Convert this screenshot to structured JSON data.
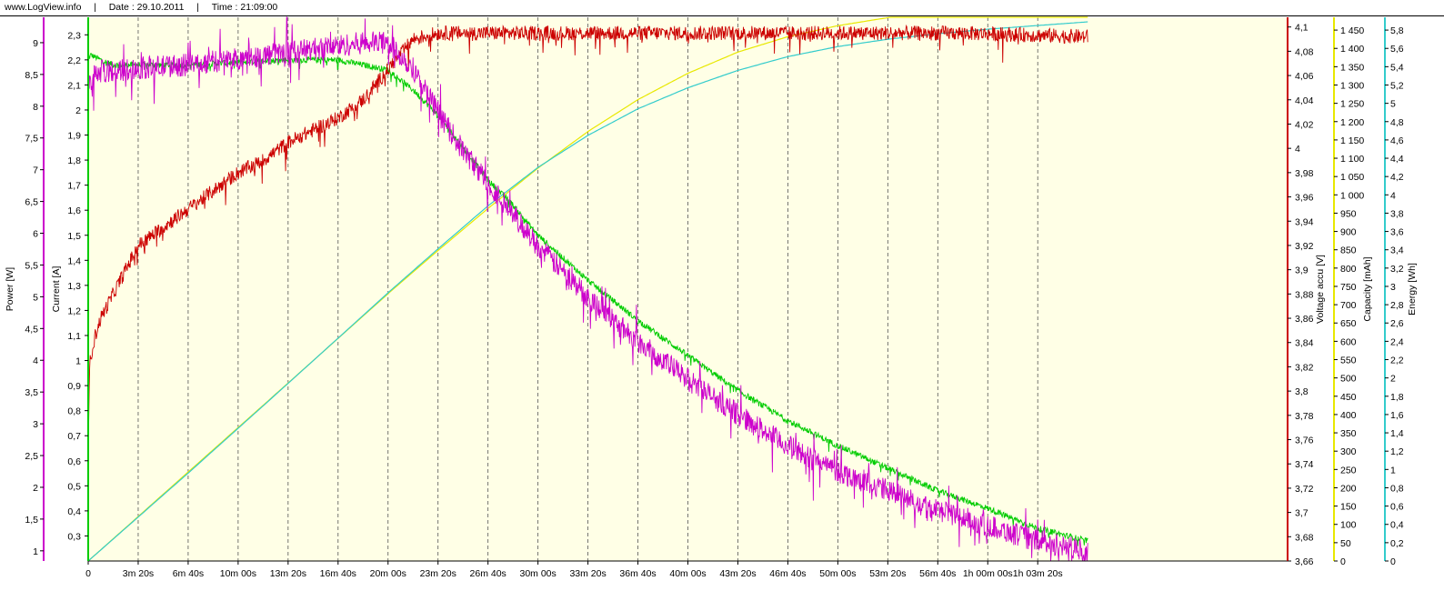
{
  "header": {
    "site": "www.LogView.info",
    "separator": "|",
    "date_label": "Date : 29.10.2011",
    "time_label": "Time : 21:09:00"
  },
  "colors": {
    "background": "#ffffe6",
    "grid": "#555555",
    "power": "#cc00cc",
    "current": "#00cc00",
    "voltage": "#cc0000",
    "capacity": "#e8e800",
    "energy": "#33cccc"
  },
  "chart_data": {
    "type": "line",
    "x_unit": "seconds",
    "xlim": [
      0,
      4800
    ],
    "x_ticks": [
      {
        "value": 0,
        "label": "0"
      },
      {
        "value": 200,
        "label": "3m 20s"
      },
      {
        "value": 400,
        "label": "6m 40s"
      },
      {
        "value": 600,
        "label": "10m 00s"
      },
      {
        "value": 800,
        "label": "13m 20s"
      },
      {
        "value": 1000,
        "label": "16m 40s"
      },
      {
        "value": 1200,
        "label": "20m 00s"
      },
      {
        "value": 1400,
        "label": "23m 20s"
      },
      {
        "value": 1600,
        "label": "26m 40s"
      },
      {
        "value": 1800,
        "label": "30m 00s"
      },
      {
        "value": 2000,
        "label": "33m 20s"
      },
      {
        "value": 2200,
        "label": "36m 40s"
      },
      {
        "value": 2400,
        "label": "40m 00s"
      },
      {
        "value": 2600,
        "label": "43m 20s"
      },
      {
        "value": 2800,
        "label": "46m 40s"
      },
      {
        "value": 3000,
        "label": "50m 00s"
      },
      {
        "value": 3200,
        "label": "53m 20s"
      },
      {
        "value": 3400,
        "label": "56m 40s"
      },
      {
        "value": 3600,
        "label": "1h 00m 00s"
      },
      {
        "value": 3800,
        "label": "1h 03m 20s"
      }
    ],
    "axes": [
      {
        "id": "power",
        "label": "Power [W]",
        "side": "left",
        "min": 0.84,
        "max": 9.4,
        "ticks": [
          1,
          1.5,
          2,
          2.5,
          3,
          3.5,
          4,
          4.5,
          5,
          5.5,
          6,
          6.5,
          7,
          7.5,
          8,
          8.5,
          9
        ],
        "tick_labels": [
          "1",
          "1,5",
          "2",
          "2,5",
          "3",
          "3,5",
          "4",
          "4,5",
          "5",
          "5,5",
          "6",
          "6,5",
          "7",
          "7,5",
          "8",
          "8,5",
          "9"
        ]
      },
      {
        "id": "current",
        "label": "Current [A]",
        "side": "left",
        "min": 0.2,
        "max": 2.37,
        "ticks": [
          0.3,
          0.4,
          0.5,
          0.6,
          0.7,
          0.8,
          0.9,
          1,
          1.1,
          1.2,
          1.3,
          1.4,
          1.5,
          1.6,
          1.7,
          1.8,
          1.9,
          2,
          2.1,
          2.2,
          2.3
        ],
        "tick_labels": [
          "0,3",
          "0,4",
          "0,5",
          "0,6",
          "0,7",
          "0,8",
          "0,9",
          "1",
          "1,1",
          "1,2",
          "1,3",
          "1,4",
          "1,5",
          "1,6",
          "1,7",
          "1,8",
          "1,9",
          "2",
          "2,1",
          "2,2",
          "2,3"
        ]
      },
      {
        "id": "voltage",
        "label": "Voltage accu [V]",
        "side": "right",
        "min": 3.66,
        "max": 4.108,
        "ticks": [
          3.66,
          3.68,
          3.7,
          3.72,
          3.74,
          3.76,
          3.78,
          3.8,
          3.82,
          3.84,
          3.86,
          3.88,
          3.9,
          3.92,
          3.94,
          3.96,
          3.98,
          4,
          4.02,
          4.04,
          4.06,
          4.08,
          4.1
        ],
        "tick_labels": [
          "3,66",
          "3,68",
          "3,7",
          "3,72",
          "3,74",
          "3,76",
          "3,78",
          "3,8",
          "3,82",
          "3,84",
          "3,86",
          "3,88",
          "3,9",
          "3,92",
          "3,94",
          "3,96",
          "3,98",
          "4",
          "4,02",
          "4,04",
          "4,06",
          "4,08",
          "4,1"
        ]
      },
      {
        "id": "capacity",
        "label": "Capacity [mAh]",
        "side": "right",
        "min": 0,
        "max": 1485,
        "ticks": [
          0,
          50,
          100,
          150,
          200,
          250,
          300,
          350,
          400,
          450,
          500,
          550,
          600,
          650,
          700,
          750,
          800,
          850,
          900,
          950,
          1000,
          1050,
          1100,
          1150,
          1200,
          1250,
          1300,
          1350,
          1400,
          1450
        ],
        "tick_labels": [
          "0",
          "50",
          "100",
          "150",
          "200",
          "250",
          "300",
          "350",
          "400",
          "450",
          "500",
          "550",
          "600",
          "650",
          "700",
          "750",
          "800",
          "850",
          "900",
          "950",
          "1 000",
          "1 050",
          "1 100",
          "1 150",
          "1 200",
          "1 250",
          "1 300",
          "1 350",
          "1 400",
          "1 450"
        ]
      },
      {
        "id": "energy",
        "label": "Energy [Wh]",
        "side": "right",
        "min": 0,
        "max": 5.94,
        "ticks": [
          0,
          0.2,
          0.4,
          0.6,
          0.8,
          1,
          1.2,
          1.4,
          1.6,
          1.8,
          2,
          2.2,
          2.4,
          2.6,
          2.8,
          3,
          3.2,
          3.4,
          3.6,
          3.8,
          4,
          4.2,
          4.4,
          4.6,
          4.8,
          5,
          5.2,
          5.4,
          5.6,
          5.8
        ],
        "tick_labels": [
          "0",
          "0,2",
          "0,4",
          "0,6",
          "0,8",
          "1",
          "1,2",
          "1,4",
          "1,6",
          "1,8",
          "2",
          "2,2",
          "2,4",
          "2,6",
          "2,8",
          "3",
          "3,2",
          "3,4",
          "3,6",
          "3,8",
          "4",
          "4,2",
          "4,4",
          "4,6",
          "4,8",
          "5",
          "5,2",
          "5,4",
          "5,6",
          "5,8"
        ]
      }
    ],
    "series": [
      {
        "name": "Power [W]",
        "axis": "power",
        "noise": 0.18,
        "x": [
          0,
          10,
          50,
          100,
          200,
          400,
          600,
          800,
          1000,
          1100,
          1200,
          1300,
          1400,
          1500,
          1600,
          1700,
          1800,
          2000,
          2200,
          2400,
          2600,
          2800,
          3000,
          3200,
          3400,
          3600,
          3800,
          4000
        ],
        "y": [
          8.35,
          8.45,
          8.55,
          8.55,
          8.6,
          8.65,
          8.75,
          8.85,
          8.95,
          9.0,
          9.0,
          8.6,
          7.9,
          7.3,
          6.8,
          6.3,
          5.8,
          5.0,
          4.3,
          3.7,
          3.15,
          2.65,
          2.25,
          1.95,
          1.65,
          1.4,
          1.15,
          1.0
        ]
      },
      {
        "name": "Current [A]",
        "axis": "current",
        "noise": 0.012,
        "x": [
          0,
          10,
          50,
          100,
          200,
          400,
          600,
          800,
          1000,
          1100,
          1200,
          1300,
          1400,
          1500,
          1600,
          1700,
          1800,
          2000,
          2200,
          2400,
          2600,
          2800,
          3000,
          3200,
          3400,
          3600,
          3800,
          4000
        ],
        "y": [
          2.2,
          2.22,
          2.2,
          2.18,
          2.18,
          2.18,
          2.19,
          2.2,
          2.2,
          2.18,
          2.16,
          2.08,
          1.98,
          1.85,
          1.72,
          1.62,
          1.5,
          1.32,
          1.16,
          1.02,
          0.88,
          0.76,
          0.66,
          0.57,
          0.48,
          0.41,
          0.33,
          0.28
        ]
      },
      {
        "name": "Voltage accu [V]",
        "axis": "voltage",
        "noise": 0.006,
        "x": [
          0,
          5,
          20,
          50,
          100,
          200,
          300,
          400,
          500,
          600,
          700,
          800,
          900,
          1000,
          1100,
          1200,
          1300,
          1400,
          1600,
          2000,
          2500,
          3000,
          3500,
          4000
        ],
        "y": [
          3.74,
          3.82,
          3.84,
          3.86,
          3.88,
          3.92,
          3.935,
          3.95,
          3.965,
          3.98,
          3.99,
          4.005,
          4.015,
          4.025,
          4.04,
          4.065,
          4.09,
          4.095,
          4.095,
          4.095,
          4.095,
          4.095,
          4.095,
          4.092
        ]
      },
      {
        "name": "Capacity [mAh]",
        "axis": "capacity",
        "noise": 0,
        "x": [
          0,
          400,
          800,
          1200,
          1400,
          1600,
          1800,
          2000,
          2200,
          2400,
          2600,
          2800,
          3000,
          3200,
          3400,
          3600,
          3800,
          4000
        ],
        "y": [
          0,
          243,
          486,
          730,
          848,
          963,
          1073,
          1173,
          1260,
          1332,
          1390,
          1432,
          1462,
          1484,
          1500,
          1512,
          1520,
          1528
        ]
      },
      {
        "name": "Energy [Wh]",
        "axis": "energy",
        "noise": 0,
        "x": [
          0,
          400,
          800,
          1200,
          1400,
          1600,
          1800,
          2000,
          2200,
          2400,
          2600,
          2800,
          3000,
          3200,
          3400,
          3600,
          3800,
          4000
        ],
        "y": [
          0,
          0.96,
          1.94,
          2.93,
          3.41,
          3.88,
          4.3,
          4.65,
          4.94,
          5.17,
          5.36,
          5.51,
          5.62,
          5.7,
          5.76,
          5.81,
          5.85,
          5.89
        ]
      }
    ],
    "grid": true,
    "legend": "none"
  }
}
